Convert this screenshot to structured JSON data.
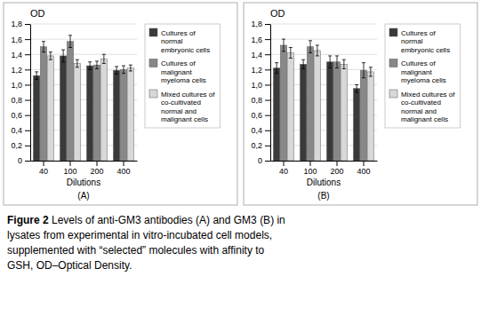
{
  "chart_data": [
    {
      "type": "bar",
      "title": "OD",
      "xlabel": "Dilutions",
      "annotation": "(A)",
      "categories": [
        "40",
        "100",
        "200",
        "400"
      ],
      "series": [
        {
          "name": "Cultures of\nnormal\nembryonic cells",
          "color": "#3a3a3a",
          "values": [
            1.12,
            1.38,
            1.25,
            1.19
          ],
          "errors": [
            0.05,
            0.08,
            0.05,
            0.05
          ]
        },
        {
          "name": "Cultures of\nmalignant\nmyeloma cells",
          "color": "#888888",
          "values": [
            1.5,
            1.57,
            1.26,
            1.2
          ],
          "errors": [
            0.07,
            0.08,
            0.05,
            0.05
          ]
        },
        {
          "name": "Mixed cultures of\nco-cultivated\nnormal and\nmalignant cells",
          "color": "#d8d8d8",
          "values": [
            1.38,
            1.28,
            1.34,
            1.22
          ],
          "errors": [
            0.05,
            0.05,
            0.06,
            0.04
          ]
        }
      ],
      "ylim": [
        0,
        1.8
      ],
      "yticks": [
        0,
        {
          "value": 0.2,
          "label": "0,2"
        },
        {
          "value": 0.4,
          "label": "0,4"
        },
        {
          "value": 0.6,
          "label": "0,6"
        },
        {
          "value": 0.8,
          "label": "0,8"
        },
        {
          "value": 1.0,
          "label": "1,0"
        },
        {
          "value": 1.2,
          "label": "1,2"
        },
        {
          "value": 1.4,
          "label": "1,4"
        },
        {
          "value": 1.6,
          "label": "1,6"
        },
        {
          "value": 1.8,
          "label": "1,8"
        }
      ],
      "grid": true,
      "legend": "right"
    },
    {
      "type": "bar",
      "title": "OD",
      "xlabel": "Dilutions",
      "annotation": "(B)",
      "categories": [
        "40",
        "100",
        "200",
        "400"
      ],
      "series": [
        {
          "name": "Cultures of\nnormal\nembryonic cells",
          "color": "#3a3a3a",
          "values": [
            1.22,
            1.27,
            1.3,
            0.95
          ],
          "errors": [
            0.07,
            0.06,
            0.08,
            0.05
          ]
        },
        {
          "name": "Cultures of\nmalignant\nmyeloma cells",
          "color": "#888888",
          "values": [
            1.52,
            1.5,
            1.3,
            1.19
          ],
          "errors": [
            0.08,
            0.08,
            0.08,
            0.1
          ]
        },
        {
          "name": "Mixed cultures of\nco-cultivated\nnormal and\nmalignant cells",
          "color": "#d8d8d8",
          "values": [
            1.42,
            1.45,
            1.27,
            1.17
          ],
          "errors": [
            0.07,
            0.07,
            0.06,
            0.06
          ]
        }
      ],
      "ylim": [
        0,
        1.8
      ],
      "yticks": [
        0,
        {
          "value": 0.2,
          "label": "0,2"
        },
        {
          "value": 0.4,
          "label": "0,4"
        },
        {
          "value": 0.6,
          "label": "0,6"
        },
        {
          "value": 0.8,
          "label": "0,8"
        },
        {
          "value": 1.0,
          "label": "1,0"
        },
        {
          "value": 1.2,
          "label": "1,2"
        },
        {
          "value": 1.4,
          "label": "1,4"
        },
        {
          "value": 1.6,
          "label": "1,6"
        },
        {
          "value": 1.8,
          "label": "1,8"
        }
      ],
      "grid": true,
      "legend": "right"
    }
  ],
  "caption": [
    "Figure 2 Levels of anti-GM3 antibodies (A) and GM3 (B) in",
    "lysates from experimental in vitro-incubated cell models,",
    "supplemented with “selected” molecules with affinity to",
    "GSH, OD–Optical Density."
  ]
}
